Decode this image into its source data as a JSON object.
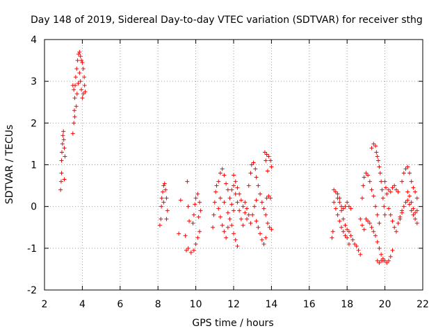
{
  "chart_data": {
    "type": "scatter",
    "title": "Day 148 of 2019, Sidereal Day-to-day VTEC variation (SDTVAR) for receiver sthg",
    "xlabel": "GPS time / hours",
    "ylabel": "SDTVAR / TECUs",
    "xlim": [
      2,
      22
    ],
    "ylim": [
      -2,
      4
    ],
    "xticks": [
      "2",
      "4",
      "6",
      "8",
      "10",
      "12",
      "14",
      "16",
      "18",
      "20",
      "22"
    ],
    "yticks": [
      "-2",
      "-1",
      "0",
      "1",
      "2",
      "3",
      "4"
    ],
    "grid": true,
    "marker": "+",
    "color": "#ff0000",
    "series": [
      {
        "name": "SDTVAR",
        "points": [
          [
            2.85,
            0.4
          ],
          [
            2.88,
            0.6
          ],
          [
            2.9,
            0.8
          ],
          [
            2.9,
            1.1
          ],
          [
            2.92,
            1.3
          ],
          [
            2.95,
            1.5
          ],
          [
            2.97,
            1.7
          ],
          [
            3.0,
            1.8
          ],
          [
            3.02,
            1.6
          ],
          [
            3.05,
            1.4
          ],
          [
            3.05,
            0.65
          ],
          [
            3.08,
            1.2
          ],
          [
            3.5,
            1.75
          ],
          [
            3.55,
            2.0
          ],
          [
            3.58,
            2.3
          ],
          [
            3.6,
            2.6
          ],
          [
            3.62,
            2.9
          ],
          [
            3.65,
            3.1
          ],
          [
            3.7,
            3.3
          ],
          [
            3.75,
            3.5
          ],
          [
            3.8,
            3.65
          ],
          [
            3.85,
            3.7
          ],
          [
            3.9,
            3.6
          ],
          [
            3.95,
            3.5
          ],
          [
            4.0,
            3.45
          ],
          [
            4.05,
            3.3
          ],
          [
            4.1,
            3.1
          ],
          [
            4.12,
            2.9
          ],
          [
            4.15,
            2.75
          ],
          [
            3.6,
            2.15
          ],
          [
            3.68,
            2.4
          ],
          [
            3.72,
            2.7
          ],
          [
            3.78,
            2.95
          ],
          [
            3.85,
            3.2
          ],
          [
            3.9,
            3.0
          ],
          [
            3.95,
            2.8
          ],
          [
            4.0,
            2.6
          ],
          [
            4.05,
            2.7
          ],
          [
            3.55,
            2.8
          ],
          [
            3.5,
            2.9
          ],
          [
            8.1,
            -0.45
          ],
          [
            8.15,
            -0.3
          ],
          [
            8.18,
            0.0
          ],
          [
            8.2,
            0.2
          ],
          [
            8.25,
            0.35
          ],
          [
            8.3,
            0.5
          ],
          [
            8.35,
            0.55
          ],
          [
            8.4,
            0.4
          ],
          [
            8.45,
            0.2
          ],
          [
            8.5,
            -0.1
          ],
          [
            8.45,
            -0.3
          ],
          [
            8.3,
            0.1
          ],
          [
            9.1,
            -0.65
          ],
          [
            9.2,
            0.15
          ],
          [
            9.45,
            -0.7
          ],
          [
            9.55,
            0.6
          ],
          [
            9.6,
            0.0
          ],
          [
            9.65,
            -0.35
          ],
          [
            9.5,
            -1.05
          ],
          [
            9.6,
            -1.0
          ],
          [
            9.75,
            -1.1
          ],
          [
            9.9,
            -1.05
          ],
          [
            10.0,
            -0.9
          ],
          [
            10.1,
            -0.75
          ],
          [
            10.2,
            -0.6
          ],
          [
            9.85,
            -0.4
          ],
          [
            9.9,
            -0.2
          ],
          [
            9.95,
            0.05
          ],
          [
            10.0,
            0.2
          ],
          [
            10.1,
            0.3
          ],
          [
            10.2,
            0.1
          ],
          [
            10.25,
            -0.1
          ],
          [
            10.15,
            -0.25
          ],
          [
            10.9,
            -0.5
          ],
          [
            10.95,
            -0.2
          ],
          [
            11.0,
            0.1
          ],
          [
            11.05,
            0.35
          ],
          [
            11.1,
            0.5
          ],
          [
            11.2,
            0.6
          ],
          [
            11.3,
            0.8
          ],
          [
            11.4,
            0.9
          ],
          [
            11.5,
            0.75
          ],
          [
            11.6,
            0.55
          ],
          [
            11.7,
            0.4
          ],
          [
            11.8,
            0.2
          ],
          [
            11.9,
            0.05
          ],
          [
            12.0,
            -0.1
          ],
          [
            11.2,
            -0.05
          ],
          [
            11.3,
            -0.25
          ],
          [
            11.4,
            -0.45
          ],
          [
            11.5,
            -0.6
          ],
          [
            11.6,
            -0.75
          ],
          [
            11.7,
            -0.5
          ],
          [
            11.8,
            -0.3
          ],
          [
            11.9,
            -0.45
          ],
          [
            12.0,
            -0.65
          ],
          [
            12.1,
            -0.8
          ],
          [
            12.2,
            -0.95
          ],
          [
            11.3,
            0.2
          ],
          [
            11.5,
            0.1
          ],
          [
            11.7,
            -0.15
          ],
          [
            11.9,
            0.4
          ],
          [
            12.0,
            0.5
          ],
          [
            12.1,
            0.3
          ],
          [
            12.2,
            0.1
          ],
          [
            12.3,
            -0.1
          ],
          [
            12.4,
            -0.3
          ],
          [
            12.5,
            -0.45
          ],
          [
            12.0,
            0.75
          ],
          [
            12.1,
            0.6
          ],
          [
            12.2,
            0.45
          ],
          [
            12.3,
            0.3
          ],
          [
            12.4,
            0.15
          ],
          [
            12.5,
            0.0
          ],
          [
            12.6,
            -0.15
          ],
          [
            12.7,
            -0.3
          ],
          [
            12.8,
            0.5
          ],
          [
            12.9,
            0.8
          ],
          [
            12.95,
            1.0
          ],
          [
            13.05,
            1.05
          ],
          [
            13.15,
            0.9
          ],
          [
            13.2,
            0.7
          ],
          [
            13.3,
            0.5
          ],
          [
            13.4,
            0.3
          ],
          [
            13.5,
            0.1
          ],
          [
            13.6,
            -0.05
          ],
          [
            13.7,
            -0.2
          ],
          [
            12.6,
            0.1
          ],
          [
            12.7,
            -0.05
          ],
          [
            12.8,
            -0.2
          ],
          [
            12.9,
            -0.4
          ],
          [
            13.0,
            -0.2
          ],
          [
            13.1,
            0.0
          ],
          [
            13.2,
            0.15
          ],
          [
            13.2,
            -0.35
          ],
          [
            13.3,
            -0.5
          ],
          [
            13.4,
            -0.65
          ],
          [
            13.5,
            -0.8
          ],
          [
            13.6,
            -0.9
          ],
          [
            13.7,
            -0.75
          ],
          [
            13.65,
            1.3
          ],
          [
            13.75,
            1.25
          ],
          [
            13.85,
            1.2
          ],
          [
            13.95,
            1.1
          ],
          [
            14.0,
            0.95
          ],
          [
            13.7,
            1.1
          ],
          [
            13.8,
            0.85
          ],
          [
            13.75,
            0.2
          ],
          [
            13.85,
            0.25
          ],
          [
            13.95,
            0.2
          ],
          [
            13.8,
            -0.4
          ],
          [
            13.9,
            -0.5
          ],
          [
            14.0,
            -0.55
          ],
          [
            17.2,
            -0.75
          ],
          [
            17.25,
            -0.6
          ],
          [
            17.3,
            0.4
          ],
          [
            17.4,
            0.35
          ],
          [
            17.5,
            0.2
          ],
          [
            17.6,
            0.1
          ],
          [
            17.7,
            0.0
          ],
          [
            17.8,
            -0.05
          ],
          [
            17.9,
            0.0
          ],
          [
            18.0,
            0.1
          ],
          [
            18.1,
            0.0
          ],
          [
            18.2,
            -0.05
          ],
          [
            17.3,
            0.1
          ],
          [
            17.4,
            -0.05
          ],
          [
            17.5,
            -0.2
          ],
          [
            17.6,
            -0.35
          ],
          [
            17.7,
            -0.5
          ],
          [
            17.8,
            -0.6
          ],
          [
            17.9,
            -0.7
          ],
          [
            18.0,
            -0.75
          ],
          [
            18.1,
            -0.9
          ],
          [
            17.5,
            0.3
          ],
          [
            17.6,
            0.2
          ],
          [
            17.7,
            -0.1
          ],
          [
            17.8,
            -0.3
          ],
          [
            17.9,
            -0.45
          ],
          [
            18.0,
            -0.55
          ],
          [
            18.1,
            -0.6
          ],
          [
            18.2,
            -0.7
          ],
          [
            18.3,
            -0.8
          ],
          [
            18.4,
            -0.9
          ],
          [
            18.5,
            -0.95
          ],
          [
            18.6,
            -1.05
          ],
          [
            18.7,
            -1.15
          ],
          [
            18.7,
            -0.3
          ],
          [
            18.8,
            0.2
          ],
          [
            18.85,
            0.5
          ],
          [
            18.9,
            0.7
          ],
          [
            19.0,
            0.8
          ],
          [
            19.1,
            0.75
          ],
          [
            19.2,
            0.6
          ],
          [
            19.3,
            0.4
          ],
          [
            19.4,
            0.25
          ],
          [
            19.5,
            0.0
          ],
          [
            19.6,
            -0.2
          ],
          [
            19.7,
            -0.4
          ],
          [
            18.8,
            -0.45
          ],
          [
            18.9,
            -0.55
          ],
          [
            19.0,
            -0.3
          ],
          [
            19.1,
            -0.35
          ],
          [
            19.2,
            -0.4
          ],
          [
            19.3,
            -0.5
          ],
          [
            19.4,
            -0.6
          ],
          [
            19.5,
            -0.7
          ],
          [
            19.6,
            -0.85
          ],
          [
            19.7,
            -1.0
          ],
          [
            19.8,
            -1.15
          ],
          [
            19.9,
            -1.3
          ],
          [
            19.3,
            1.4
          ],
          [
            19.4,
            1.5
          ],
          [
            19.5,
            1.45
          ],
          [
            19.55,
            1.3
          ],
          [
            19.6,
            1.2
          ],
          [
            19.65,
            1.1
          ],
          [
            19.7,
            0.95
          ],
          [
            19.75,
            0.8
          ],
          [
            19.8,
            0.6
          ],
          [
            19.85,
            0.4
          ],
          [
            19.9,
            0.2
          ],
          [
            19.95,
            0.0
          ],
          [
            20.0,
            -0.2
          ],
          [
            19.6,
            -1.3
          ],
          [
            19.7,
            -1.35
          ],
          [
            19.8,
            -1.3
          ],
          [
            19.9,
            -1.25
          ],
          [
            20.0,
            -1.3
          ],
          [
            20.1,
            -1.35
          ],
          [
            20.2,
            -1.3
          ],
          [
            20.3,
            -1.2
          ],
          [
            20.4,
            -1.05
          ],
          [
            20.0,
            0.6
          ],
          [
            20.05,
            0.45
          ],
          [
            20.1,
            0.3
          ],
          [
            20.2,
            0.4
          ],
          [
            20.3,
            0.35
          ],
          [
            20.4,
            0.45
          ],
          [
            20.5,
            0.5
          ],
          [
            20.6,
            0.4
          ],
          [
            20.7,
            0.35
          ],
          [
            20.2,
            -0.05
          ],
          [
            20.3,
            -0.2
          ],
          [
            20.4,
            -0.35
          ],
          [
            20.5,
            -0.5
          ],
          [
            20.6,
            -0.6
          ],
          [
            20.7,
            -0.4
          ],
          [
            20.8,
            -0.25
          ],
          [
            20.9,
            -0.1
          ],
          [
            20.9,
            0.6
          ],
          [
            21.0,
            0.8
          ],
          [
            21.1,
            0.9
          ],
          [
            21.2,
            0.95
          ],
          [
            21.3,
            0.8
          ],
          [
            21.4,
            0.6
          ],
          [
            21.5,
            0.45
          ],
          [
            21.6,
            0.35
          ],
          [
            21.7,
            0.2
          ],
          [
            20.8,
            -0.3
          ],
          [
            20.9,
            -0.15
          ],
          [
            21.0,
            0.0
          ],
          [
            21.1,
            0.1
          ],
          [
            21.2,
            0.15
          ],
          [
            21.3,
            0.05
          ],
          [
            21.4,
            -0.1
          ],
          [
            21.5,
            -0.2
          ],
          [
            21.6,
            -0.3
          ],
          [
            21.7,
            -0.4
          ],
          [
            21.2,
            0.35
          ],
          [
            21.3,
            0.25
          ],
          [
            21.4,
            0.1
          ],
          [
            21.5,
            -0.05
          ],
          [
            21.6,
            -0.15
          ],
          [
            21.7,
            -0.1
          ]
        ]
      }
    ]
  }
}
